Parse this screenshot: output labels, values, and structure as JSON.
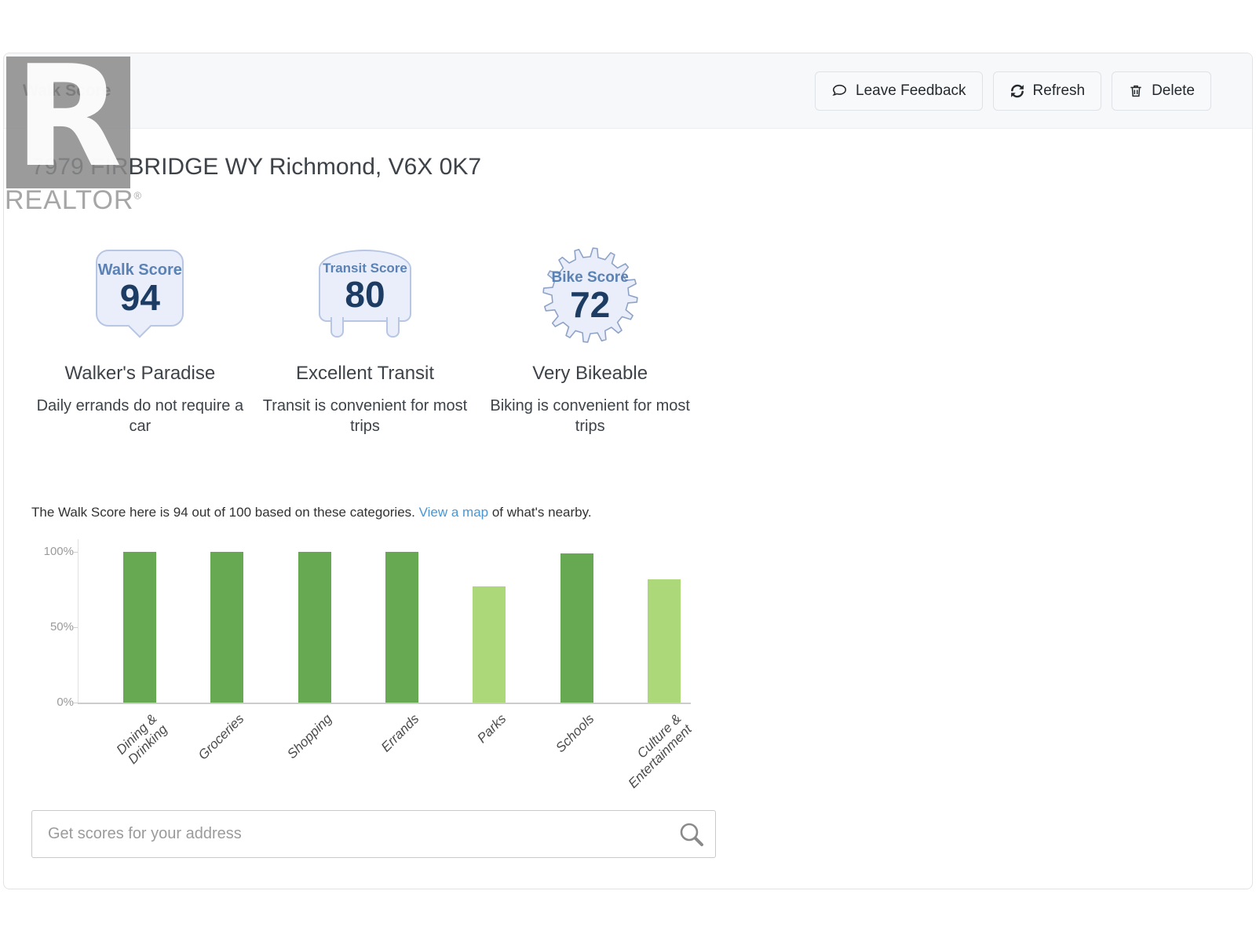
{
  "header": {
    "title": "Walk Score",
    "buttons": [
      {
        "label": "Leave Feedback",
        "icon": "comment-icon"
      },
      {
        "label": "Refresh",
        "icon": "refresh-icon"
      },
      {
        "label": "Delete",
        "icon": "trash-icon"
      }
    ]
  },
  "watermark": {
    "letter": "R",
    "brand": "REALTOR",
    "reg": "®"
  },
  "listing": {
    "address": "7979 FIRBRIDGE WY Richmond, V6X 0K7"
  },
  "scores": [
    {
      "badge_label": "Walk Score",
      "value": "94",
      "title": "Walker's Paradise",
      "description": "Daily errands do not require a car",
      "shape": "bubble"
    },
    {
      "badge_label": "Transit Score",
      "value": "80",
      "title": "Excellent Transit",
      "description": "Transit is convenient for most trips",
      "shape": "bus"
    },
    {
      "badge_label": "Bike Score",
      "value": "72",
      "title": "Very Bikeable",
      "description": "Biking is convenient for most trips",
      "shape": "gear"
    }
  ],
  "chart_intro": {
    "before": "The Walk Score here is 94 out of 100 based on these categories. ",
    "link_text": "View a map",
    "after": " of what's nearby."
  },
  "chart_data": {
    "type": "bar",
    "categories": [
      "Dining & Drinking",
      "Groceries",
      "Shopping",
      "Errands",
      "Parks",
      "Schools",
      "Culture & Entertainment"
    ],
    "tick_labels": [
      "Dining &\nDrinking",
      "Groceries",
      "Shopping",
      "Errands",
      "Parks",
      "Schools",
      "Culture &\nEntertainment"
    ],
    "values": [
      100,
      100,
      100,
      100,
      77,
      99,
      82
    ],
    "bar_palette": {
      "high": "#67a953",
      "low": "#acd87a"
    },
    "bar_color_keys": [
      "high",
      "high",
      "high",
      "high",
      "low",
      "high",
      "low"
    ],
    "xlabel": "",
    "ylabel": "",
    "ylim": [
      0,
      100
    ],
    "yticks": [
      {
        "label": "100%",
        "value": 100
      },
      {
        "label": "50%",
        "value": 50
      },
      {
        "label": "0%",
        "value": 0
      }
    ],
    "grid": false,
    "legend": false
  },
  "search": {
    "placeholder": "Get scores for your address",
    "value": "",
    "icon": "search-icon"
  },
  "colors": {
    "accent_link": "#4a96d2",
    "badge_fill": "#e9eefa",
    "badge_border": "#b7c6e3",
    "badge_label_blue": "#5b82b5",
    "badge_value_navy": "#1d3c63",
    "bar_green_dark": "#67a953",
    "bar_green_light": "#acd87a",
    "header_band": "#f7f8f9"
  }
}
